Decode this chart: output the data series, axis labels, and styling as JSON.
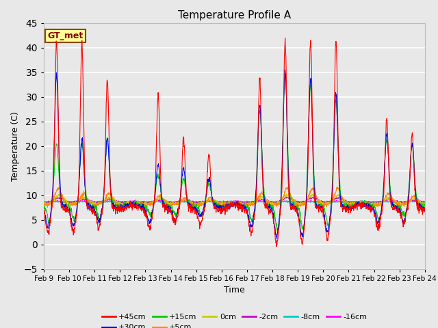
{
  "title": "Temperature Profile A",
  "xlabel": "Time",
  "ylabel": "Temperature (C)",
  "ylim": [
    -5,
    45
  ],
  "xlim": [
    0,
    360
  ],
  "plot_bg_color": "#e8e8e8",
  "grid_color": "#ffffff",
  "label_box_text": "GT_met",
  "label_box_facecolor": "#ffff99",
  "label_box_edgecolor": "#8B4513",
  "series_colors": {
    "+45cm": "#ff0000",
    "+30cm": "#0000ee",
    "+15cm": "#00cc00",
    "+5cm": "#ff8800",
    "0cm": "#cccc00",
    "-2cm": "#cc00cc",
    "-8cm": "#00cccc",
    "-16cm": "#ff00ff"
  },
  "xtick_labels": [
    "Feb 9",
    "Feb 10",
    "Feb 11",
    "Feb 12",
    "Feb 13",
    "Feb 14",
    "Feb 15",
    "Feb 16",
    "Feb 17",
    "Feb 18",
    "Feb 19",
    "Feb 20",
    "Feb 21",
    "Feb 22",
    "Feb 23",
    "Feb 24"
  ],
  "xtick_positions": [
    0,
    24,
    48,
    72,
    96,
    120,
    144,
    168,
    192,
    216,
    240,
    264,
    288,
    312,
    336,
    360
  ],
  "ytick_positions": [
    -5,
    0,
    5,
    10,
    15,
    20,
    25,
    30,
    35,
    40,
    45
  ],
  "n_points": 1441,
  "spike_days": [
    0,
    1,
    2,
    4,
    5,
    6,
    8,
    9,
    10,
    11,
    13,
    14
  ],
  "spike_heights_45": [
    41,
    40,
    33,
    30,
    21,
    18,
    33,
    41,
    41,
    41,
    25,
    22
  ],
  "spike_heights_30": [
    34,
    21,
    21,
    16,
    15,
    13,
    28,
    35,
    33,
    30,
    22,
    20
  ],
  "spike_heights_15": [
    20,
    20,
    21,
    14,
    13,
    12,
    27,
    34,
    32,
    29,
    21,
    20
  ]
}
